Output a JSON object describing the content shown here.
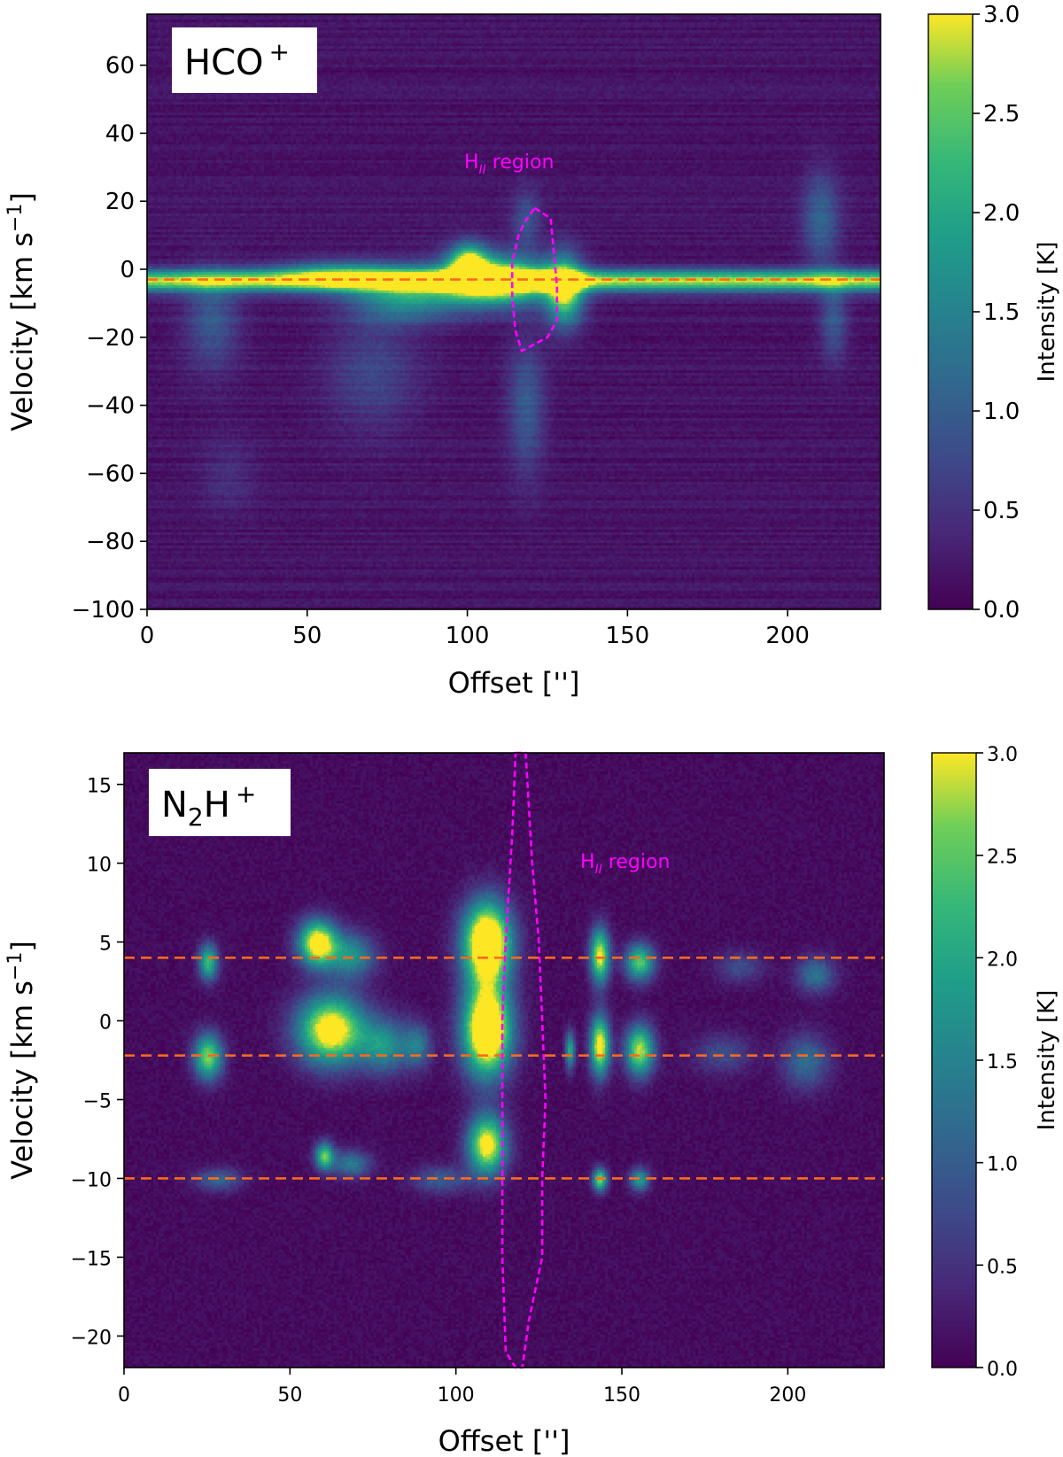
{
  "chart_data": [
    {
      "type": "heatmap",
      "panel": "top",
      "molecule_main": "HCO",
      "molecule_sup": "+",
      "xlabel": "Offset ['']",
      "ylabel_main": "Velocity [km s",
      "ylabel_sup": "−1",
      "ylabel_end": "]",
      "colorbar_label": "Intensity [K]",
      "xlim": [
        0,
        229
      ],
      "ylim": [
        -100,
        75
      ],
      "clim": [
        0,
        3.0
      ],
      "colormap": "viridis",
      "xticks": [
        0,
        50,
        100,
        150,
        200
      ],
      "yticks": [
        -100,
        -80,
        -60,
        -40,
        -20,
        0,
        20,
        40,
        60
      ],
      "colorbar_ticks": [
        0.0,
        0.5,
        1.0,
        1.5,
        2.0,
        2.5,
        3.0
      ],
      "reference_lines": [
        -3
      ],
      "hii_label_main": "H",
      "hii_label_sub": "II",
      "hii_label_end": " region",
      "hii_contour": [
        [
          121,
          18
        ],
        [
          126,
          15
        ],
        [
          127,
          5
        ],
        [
          128,
          -5
        ],
        [
          128,
          -15
        ],
        [
          125,
          -20
        ],
        [
          121,
          -22
        ],
        [
          117,
          -24
        ],
        [
          115,
          -18
        ],
        [
          114,
          -8
        ],
        [
          114,
          2
        ],
        [
          116,
          10
        ],
        [
          118,
          14
        ]
      ],
      "emission_blobs": [
        {
          "x": 0,
          "x2": 229,
          "y": -3,
          "sx": 0,
          "sy": 2.2,
          "amp": 2.6
        },
        {
          "x": 108,
          "y": -3,
          "sx": 12,
          "sy": 5,
          "amp": 3.2
        },
        {
          "x": 100,
          "y": 2,
          "sx": 4,
          "sy": 4,
          "amp": 2.5
        },
        {
          "x": 130,
          "y": -6,
          "sx": 4,
          "sy": 7,
          "amp": 2.6
        },
        {
          "x": 60,
          "y": -1,
          "sx": 15,
          "sy": 3,
          "amp": 1.3
        },
        {
          "x": 80,
          "y": -8,
          "sx": 12,
          "sy": 5,
          "amp": 1.5
        },
        {
          "x": 20,
          "y": -15,
          "sx": 6,
          "sy": 10,
          "amp": 0.8
        },
        {
          "x": 118,
          "y": -40,
          "sx": 4,
          "sy": 14,
          "amp": 0.8
        },
        {
          "x": 70,
          "y": -30,
          "sx": 10,
          "sy": 12,
          "amp": 0.55
        },
        {
          "x": 210,
          "y": 15,
          "sx": 4,
          "sy": 10,
          "amp": 0.9
        },
        {
          "x": 214,
          "y": -15,
          "sx": 3,
          "sy": 8,
          "amp": 0.8
        },
        {
          "x": 118,
          "y": 15,
          "sx": 3,
          "sy": 6,
          "amp": 0.7
        },
        {
          "x": 25,
          "y": -60,
          "sx": 6,
          "sy": 8,
          "amp": 0.3
        }
      ]
    },
    {
      "type": "heatmap",
      "panel": "bottom",
      "molecule_main": "N",
      "molecule_sub": "2",
      "molecule_mid": "H",
      "molecule_sup": "+",
      "xlabel": "Offset ['']",
      "ylabel_main": "Velocity [km s",
      "ylabel_sup": "−1",
      "ylabel_end": "]",
      "colorbar_label": "Intensity [K]",
      "xlim": [
        0,
        229
      ],
      "ylim": [
        -22,
        17
      ],
      "clim": [
        0,
        3.0
      ],
      "colormap": "viridis",
      "xticks": [
        0,
        50,
        100,
        150,
        200
      ],
      "yticks": [
        -20,
        -15,
        -10,
        -5,
        0,
        5,
        10,
        15
      ],
      "colorbar_ticks": [
        0.0,
        0.5,
        1.0,
        1.5,
        2.0,
        2.5,
        3.0
      ],
      "reference_lines": [
        4,
        -2.2,
        -10
      ],
      "hii_label_main": "H",
      "hii_label_sub": "II",
      "hii_label_end": " region",
      "hii_contour": [
        [
          118,
          17
        ],
        [
          121,
          17
        ],
        [
          123,
          10
        ],
        [
          125,
          5
        ],
        [
          126,
          0
        ],
        [
          127,
          -5
        ],
        [
          126,
          -10
        ],
        [
          126,
          -15
        ],
        [
          124,
          -17
        ],
        [
          122,
          -19
        ],
        [
          120,
          -22
        ],
        [
          118,
          -22
        ],
        [
          115,
          -21
        ],
        [
          114,
          -15
        ],
        [
          114,
          -5
        ],
        [
          114,
          0
        ],
        [
          115,
          5
        ],
        [
          117,
          12
        ]
      ],
      "emission_blobs": [
        {
          "x": 109,
          "y": 5,
          "sx": 5,
          "sy": 1.8,
          "amp": 4.2
        },
        {
          "x": 109,
          "y": -0.5,
          "sx": 5,
          "sy": 2.0,
          "amp": 4.2
        },
        {
          "x": 109,
          "y": -7.8,
          "sx": 4,
          "sy": 1.3,
          "amp": 3.2
        },
        {
          "x": 58,
          "y": 5,
          "sx": 4,
          "sy": 1.0,
          "amp": 3.4
        },
        {
          "x": 68,
          "y": 4.2,
          "sx": 5,
          "sy": 1.0,
          "amp": 1.6
        },
        {
          "x": 62,
          "y": -0.5,
          "sx": 7,
          "sy": 1.5,
          "amp": 3.4
        },
        {
          "x": 78,
          "y": -1.5,
          "sx": 5,
          "sy": 1.2,
          "amp": 1.6
        },
        {
          "x": 88,
          "y": -1.5,
          "sx": 3,
          "sy": 1.0,
          "amp": 1.2
        },
        {
          "x": 25,
          "y": 3.8,
          "sx": 2,
          "sy": 0.8,
          "amp": 2.2
        },
        {
          "x": 25,
          "y": -2.2,
          "sx": 3,
          "sy": 1.0,
          "amp": 2.6
        },
        {
          "x": 60,
          "y": -8.5,
          "sx": 2,
          "sy": 0.6,
          "amp": 2.4
        },
        {
          "x": 68,
          "y": -9,
          "sx": 4,
          "sy": 0.6,
          "amp": 1.3
        },
        {
          "x": 143,
          "y": 4.2,
          "sx": 2,
          "sy": 1.2,
          "amp": 3.0
        },
        {
          "x": 155,
          "y": 3.8,
          "sx": 3,
          "sy": 0.8,
          "amp": 2.4
        },
        {
          "x": 143,
          "y": -1.5,
          "sx": 2,
          "sy": 1.3,
          "amp": 3.2
        },
        {
          "x": 155,
          "y": -1.8,
          "sx": 3,
          "sy": 1.1,
          "amp": 2.8
        },
        {
          "x": 134,
          "y": -1.8,
          "sx": 1,
          "sy": 0.8,
          "amp": 2.0
        },
        {
          "x": 143,
          "y": -10,
          "sx": 1.5,
          "sy": 0.5,
          "amp": 2.6
        },
        {
          "x": 155,
          "y": -10,
          "sx": 2,
          "sy": 0.5,
          "amp": 1.8
        },
        {
          "x": 208,
          "y": 3.0,
          "sx": 4,
          "sy": 0.8,
          "amp": 1.2
        },
        {
          "x": 205,
          "y": -2.5,
          "sx": 5,
          "sy": 1.2,
          "amp": 1.1
        },
        {
          "x": 28,
          "y": -10,
          "sx": 5,
          "sy": 0.5,
          "amp": 1.0
        },
        {
          "x": 185,
          "y": 3.5,
          "sx": 5,
          "sy": 0.7,
          "amp": 0.7
        },
        {
          "x": 180,
          "y": -2.0,
          "sx": 6,
          "sy": 0.9,
          "amp": 0.7
        },
        {
          "x": 95,
          "y": -10,
          "sx": 6,
          "sy": 0.6,
          "amp": 0.9
        }
      ]
    }
  ]
}
